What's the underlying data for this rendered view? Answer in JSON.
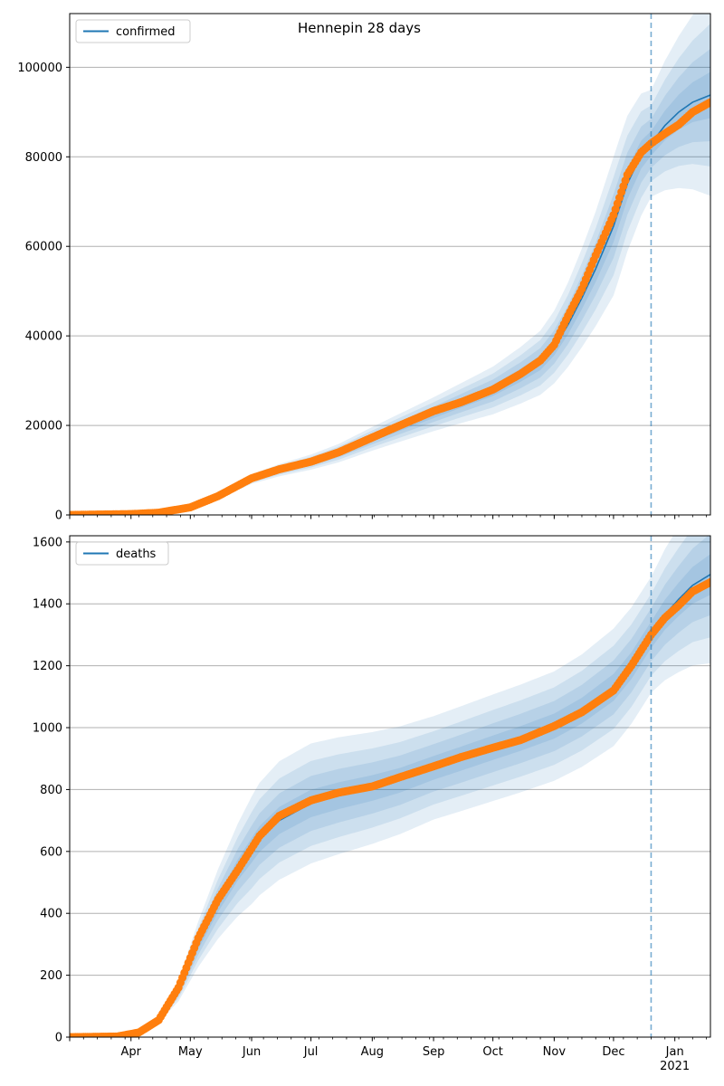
{
  "title": "Hennepin 28 days",
  "colors": {
    "line": "#1f77b4",
    "band": "#1f77b4",
    "points": "#ff7f0e",
    "grid": "#b0b0b0",
    "vline": "#1f77b4"
  },
  "x_axis": {
    "start": "2020-03-01",
    "end": "2021-01-19",
    "month_labels": [
      {
        "date": "2020-04-01",
        "label": "Apr"
      },
      {
        "date": "2020-05-01",
        "label": "May"
      },
      {
        "date": "2020-06-01",
        "label": "Jun"
      },
      {
        "date": "2020-07-01",
        "label": "Jul"
      },
      {
        "date": "2020-08-01",
        "label": "Aug"
      },
      {
        "date": "2020-09-01",
        "label": "Sep"
      },
      {
        "date": "2020-10-01",
        "label": "Oct"
      },
      {
        "date": "2020-11-01",
        "label": "Nov"
      },
      {
        "date": "2020-12-01",
        "label": "Dec"
      },
      {
        "date": "2021-01-01",
        "label": "Jan"
      }
    ],
    "year_label": {
      "date": "2021-01-01",
      "label": "2021"
    },
    "forecast_start": "2020-12-20"
  },
  "chart_data": [
    {
      "type": "line",
      "name": "confirmed",
      "legend": "confirmed",
      "legend_position": "top-left",
      "grid": true,
      "ylim": [
        0,
        112000
      ],
      "yticks": [
        {
          "value": 0,
          "label": "0"
        },
        {
          "value": 20000,
          "label": "20000"
        },
        {
          "value": 40000,
          "label": "40000"
        },
        {
          "value": 60000,
          "label": "60000"
        },
        {
          "value": 80000,
          "label": "80000"
        },
        {
          "value": 100000,
          "label": "100000"
        }
      ],
      "fit_knots": [
        [
          "2020-03-01",
          0
        ],
        [
          "2020-04-01",
          200
        ],
        [
          "2020-04-15",
          500
        ],
        [
          "2020-05-01",
          1500
        ],
        [
          "2020-05-15",
          4000
        ],
        [
          "2020-06-01",
          8000
        ],
        [
          "2020-06-15",
          10000
        ],
        [
          "2020-07-01",
          11800
        ],
        [
          "2020-07-15",
          13800
        ],
        [
          "2020-08-01",
          17000
        ],
        [
          "2020-08-15",
          19500
        ],
        [
          "2020-09-01",
          22500
        ],
        [
          "2020-09-15",
          25000
        ],
        [
          "2020-10-01",
          27800
        ],
        [
          "2020-10-15",
          31200
        ],
        [
          "2020-10-25",
          34000
        ],
        [
          "2020-11-01",
          37500
        ],
        [
          "2020-11-08",
          42500
        ],
        [
          "2020-11-15",
          48500
        ],
        [
          "2020-11-22",
          55000
        ],
        [
          "2020-12-01",
          64500
        ],
        [
          "2020-12-08",
          74000
        ],
        [
          "2020-12-15",
          80500
        ],
        [
          "2020-12-20",
          83000
        ],
        [
          "2020-12-27",
          87000
        ],
        [
          "2021-01-03",
          90000
        ],
        [
          "2021-01-10",
          92200
        ],
        [
          "2021-01-19",
          93800
        ]
      ],
      "observed_knots": [
        [
          "2020-03-01",
          0
        ],
        [
          "2020-04-01",
          200
        ],
        [
          "2020-04-15",
          500
        ],
        [
          "2020-05-01",
          1700
        ],
        [
          "2020-05-15",
          4200
        ],
        [
          "2020-06-01",
          8200
        ],
        [
          "2020-06-15",
          10200
        ],
        [
          "2020-07-01",
          11900
        ],
        [
          "2020-07-15",
          14000
        ],
        [
          "2020-08-01",
          17300
        ],
        [
          "2020-08-15",
          20000
        ],
        [
          "2020-09-01",
          23200
        ],
        [
          "2020-09-15",
          25200
        ],
        [
          "2020-10-01",
          28000
        ],
        [
          "2020-10-15",
          31500
        ],
        [
          "2020-10-25",
          34500
        ],
        [
          "2020-11-01",
          38000
        ],
        [
          "2020-11-08",
          44500
        ],
        [
          "2020-11-15",
          50500
        ],
        [
          "2020-11-22",
          58000
        ],
        [
          "2020-12-01",
          67000
        ],
        [
          "2020-12-08",
          76000
        ],
        [
          "2020-12-15",
          81000
        ],
        [
          "2020-12-20",
          83000
        ],
        [
          "2020-12-27",
          85200
        ],
        [
          "2021-01-03",
          87200
        ],
        [
          "2021-01-10",
          90000
        ],
        [
          "2021-01-19",
          92200
        ]
      ],
      "band_scale": [
        [
          "2020-03-01",
          0.04
        ],
        [
          "2020-09-01",
          0.07
        ],
        [
          "2020-12-01",
          0.1
        ],
        [
          "2020-12-20",
          0.06
        ],
        [
          "2021-01-19",
          0.1
        ]
      ]
    },
    {
      "type": "line",
      "name": "deaths",
      "legend": "deaths",
      "legend_position": "top-left",
      "grid": true,
      "ylim": [
        0,
        1620
      ],
      "yticks": [
        {
          "value": 0,
          "label": "0"
        },
        {
          "value": 200,
          "label": "200"
        },
        {
          "value": 400,
          "label": "400"
        },
        {
          "value": 600,
          "label": "600"
        },
        {
          "value": 800,
          "label": "800"
        },
        {
          "value": 1000,
          "label": "1000"
        },
        {
          "value": 1200,
          "label": "1200"
        },
        {
          "value": 1400,
          "label": "1400"
        },
        {
          "value": 1600,
          "label": "1600"
        }
      ],
      "fit_knots": [
        [
          "2020-03-01",
          0
        ],
        [
          "2020-03-25",
          2
        ],
        [
          "2020-04-05",
          15
        ],
        [
          "2020-04-15",
          60
        ],
        [
          "2020-04-25",
          150
        ],
        [
          "2020-05-05",
          300
        ],
        [
          "2020-05-15",
          430
        ],
        [
          "2020-05-25",
          540
        ],
        [
          "2020-06-05",
          640
        ],
        [
          "2020-06-15",
          700
        ],
        [
          "2020-07-01",
          755
        ],
        [
          "2020-07-15",
          780
        ],
        [
          "2020-08-01",
          805
        ],
        [
          "2020-08-15",
          830
        ],
        [
          "2020-09-01",
          870
        ],
        [
          "2020-09-15",
          900
        ],
        [
          "2020-10-01",
          935
        ],
        [
          "2020-10-15",
          965
        ],
        [
          "2020-11-01",
          1005
        ],
        [
          "2020-11-15",
          1055
        ],
        [
          "2020-12-01",
          1130
        ],
        [
          "2020-12-10",
          1200
        ],
        [
          "2020-12-20",
          1300
        ],
        [
          "2020-12-27",
          1365
        ],
        [
          "2021-01-03",
          1415
        ],
        [
          "2021-01-10",
          1460
        ],
        [
          "2021-01-19",
          1495
        ]
      ],
      "observed_knots": [
        [
          "2020-03-01",
          0
        ],
        [
          "2020-03-25",
          2
        ],
        [
          "2020-04-05",
          15
        ],
        [
          "2020-04-15",
          55
        ],
        [
          "2020-04-25",
          160
        ],
        [
          "2020-05-05",
          320
        ],
        [
          "2020-05-15",
          445
        ],
        [
          "2020-05-25",
          540
        ],
        [
          "2020-06-05",
          650
        ],
        [
          "2020-06-15",
          715
        ],
        [
          "2020-07-01",
          765
        ],
        [
          "2020-07-15",
          790
        ],
        [
          "2020-08-01",
          810
        ],
        [
          "2020-08-15",
          840
        ],
        [
          "2020-09-01",
          875
        ],
        [
          "2020-09-15",
          905
        ],
        [
          "2020-10-01",
          935
        ],
        [
          "2020-10-15",
          960
        ],
        [
          "2020-11-01",
          1005
        ],
        [
          "2020-11-15",
          1050
        ],
        [
          "2020-12-01",
          1120
        ],
        [
          "2020-12-10",
          1200
        ],
        [
          "2020-12-20",
          1300
        ],
        [
          "2020-12-27",
          1355
        ],
        [
          "2021-01-03",
          1395
        ],
        [
          "2021-01-10",
          1440
        ],
        [
          "2021-01-19",
          1470
        ]
      ],
      "band_scale": [
        [
          "2020-03-01",
          0.06
        ],
        [
          "2020-06-01",
          0.12
        ],
        [
          "2020-09-01",
          0.08
        ],
        [
          "2020-12-01",
          0.07
        ],
        [
          "2020-12-20",
          0.06
        ],
        [
          "2021-01-19",
          0.08
        ]
      ]
    }
  ]
}
